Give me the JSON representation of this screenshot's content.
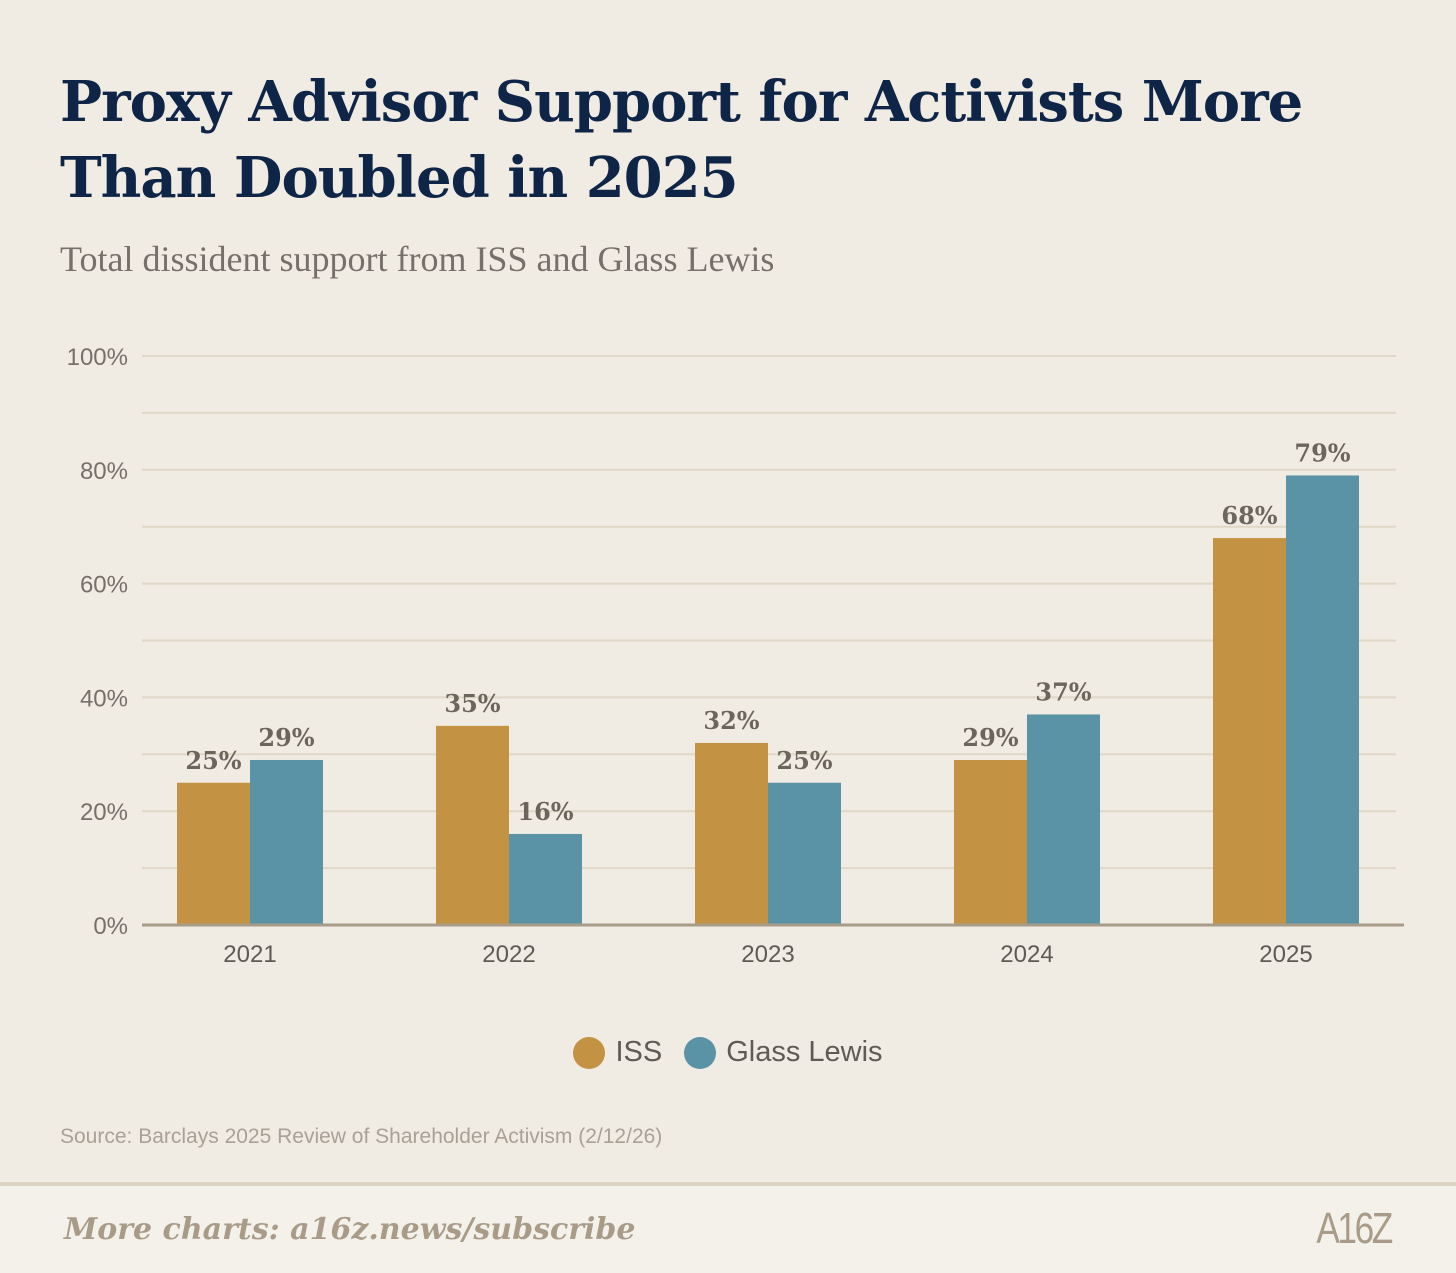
{
  "title": "Proxy Advisor Support for Activists More Than Doubled in 2025",
  "subtitle": "Total dissident support from ISS and Glass Lewis",
  "source": "Source: Barclays 2025 Review of Shareholder Activism (2/12/26)",
  "footer": {
    "more": "More charts: a16z.news/subscribe",
    "logo": "A16Z"
  },
  "chart_data": {
    "type": "bar",
    "title": "Proxy Advisor Support for Activists More Than Doubled in 2025",
    "categories": [
      "2021",
      "2022",
      "2023",
      "2024",
      "2025"
    ],
    "series": [
      {
        "name": "ISS",
        "color": "#c49243",
        "values": [
          25,
          35,
          32,
          29,
          68
        ],
        "labels": [
          "25%",
          "35%",
          "32%",
          "29%",
          "68%"
        ]
      },
      {
        "name": "Glass Lewis",
        "color": "#5b93a6",
        "values": [
          29,
          16,
          25,
          37,
          79
        ],
        "labels": [
          "29%",
          "16%",
          "25%",
          "37%",
          "79%"
        ]
      }
    ],
    "ylim": [
      0,
      100
    ],
    "yticks": [
      0,
      20,
      40,
      60,
      80,
      100
    ],
    "ytick_labels": [
      "0%",
      "20%",
      "40%",
      "60%",
      "80%",
      "100%"
    ],
    "grid": true,
    "legend": "bottom-center",
    "xlabel": "",
    "ylabel": ""
  }
}
